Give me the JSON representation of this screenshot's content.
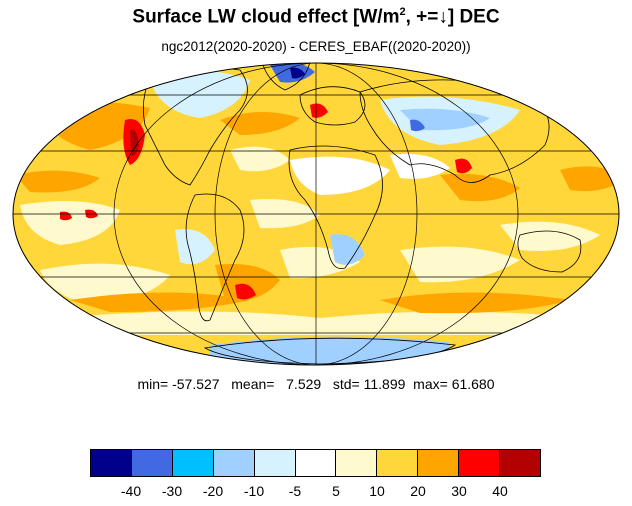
{
  "title": {
    "prefix": "Surface LW cloud effect [W/m",
    "superscript": "2",
    "suffix": ", +=↓]  DEC"
  },
  "subtitle": "ngc2012(2020-2020) - CERES_EBAF((2020-2020))",
  "stats": {
    "min_label": "min=",
    "min": "-57.527",
    "mean_label": "mean=",
    "mean": "7.529",
    "std_label": "std=",
    "std": "11.899",
    "max_label": "max=",
    "max": "61.680"
  },
  "map": {
    "projection": "mollweide",
    "ocean_base_color": "#FFD73A",
    "land_outline_color": "#000000",
    "graticule_color": "#000000"
  },
  "colorbar": {
    "colors": [
      "#00008B",
      "#4169E1",
      "#00BFFF",
      "#A0D0FF",
      "#D7F2FF",
      "#FFFFFF",
      "#FFFACD",
      "#FFD73A",
      "#FFA500",
      "#FF0000",
      "#B30000"
    ],
    "labels": [
      "-40",
      "-30",
      "-20",
      "-10",
      "-5",
      "5",
      "10",
      "20",
      "30",
      "40"
    ]
  }
}
